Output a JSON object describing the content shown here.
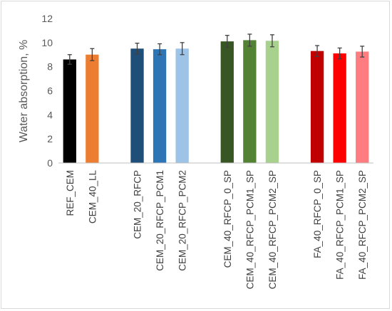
{
  "chart_data": {
    "type": "bar",
    "title": "",
    "xlabel": "",
    "ylabel": "Water absorption, %",
    "ylim": [
      0,
      12
    ],
    "yticks": [
      0,
      2,
      4,
      6,
      8,
      10,
      12
    ],
    "grid": false,
    "legend": "none",
    "groups": [
      {
        "bars": [
          {
            "category": "REF_CEM",
            "value": 8.6,
            "error": 0.4,
            "color": "#000000"
          },
          {
            "category": "CEM_40_LL",
            "value": 9.0,
            "error": 0.5,
            "color": "#ED7D31"
          }
        ]
      },
      {
        "bars": [
          {
            "category": "CEM_20_RFCP",
            "value": 9.5,
            "error": 0.45,
            "color": "#1F4E79"
          },
          {
            "category": "CEM_20_RFCP_PCM1",
            "value": 9.45,
            "error": 0.45,
            "color": "#2E75B6"
          },
          {
            "category": "CEM_20_RFCP_PCM2",
            "value": 9.5,
            "error": 0.5,
            "color": "#9DC3E6"
          }
        ]
      },
      {
        "bars": [
          {
            "category": "CEM_40_RFCP_0_SP",
            "value": 10.1,
            "error": 0.5,
            "color": "#375623"
          },
          {
            "category": "CEM_40_RFCP_PCM1_SP",
            "value": 10.2,
            "error": 0.5,
            "color": "#548235"
          },
          {
            "category": "CEM_40_RFCP_PCM2_SP",
            "value": 10.15,
            "error": 0.5,
            "color": "#A9D18E"
          }
        ]
      },
      {
        "bars": [
          {
            "category": "FA_40_RFCP_0_SP",
            "value": 9.3,
            "error": 0.45,
            "color": "#C00000"
          },
          {
            "category": "FA_40_RFCP_PCM1_SP",
            "value": 9.1,
            "error": 0.45,
            "color": "#FF0000"
          },
          {
            "category": "FA_40_RFCP_PCM2_SP",
            "value": 9.25,
            "error": 0.45,
            "color": "#FF7C80"
          }
        ]
      }
    ]
  }
}
